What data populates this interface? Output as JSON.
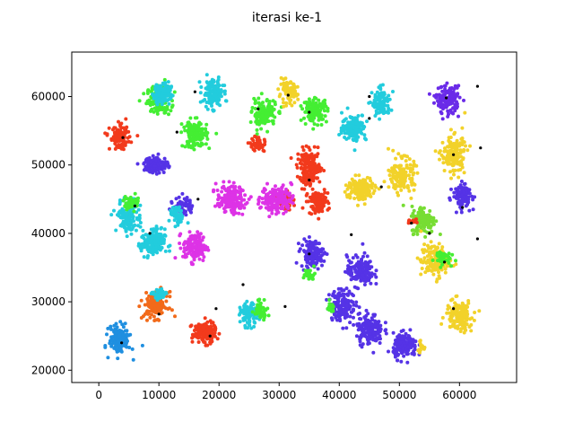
{
  "chart_data": {
    "type": "scatter",
    "title": "iterasi ke-1",
    "xlabel": "",
    "ylabel": "",
    "xlim": [
      -4500,
      69500
    ],
    "ylim": [
      18200,
      66500
    ],
    "xticks": [
      0,
      10000,
      20000,
      30000,
      40000,
      50000,
      60000
    ],
    "xtick_labels": [
      "0",
      "10000",
      "20000",
      "30000",
      "40000",
      "50000",
      "60000"
    ],
    "yticks": [
      20000,
      30000,
      40000,
      50000,
      60000
    ],
    "ytick_labels": [
      "20000",
      "30000",
      "40000",
      "50000",
      "60000"
    ],
    "grid": false,
    "legend": "none",
    "clusters": [
      {
        "center": [
          10000,
          59500
        ],
        "color": "#44ee33",
        "spread": [
          1800,
          1800
        ],
        "count": 150
      },
      {
        "center": [
          10500,
          60500
        ],
        "color": "#22ccdd",
        "spread": [
          1400,
          1500
        ],
        "count": 120
      },
      {
        "center": [
          19000,
          60500
        ],
        "color": "#22ccdd",
        "spread": [
          1500,
          1800
        ],
        "count": 140
      },
      {
        "center": [
          27500,
          57500
        ],
        "color": "#44ee33",
        "spread": [
          1800,
          1800
        ],
        "count": 140
      },
      {
        "center": [
          26500,
          53000
        ],
        "color": "#f23a1c",
        "spread": [
          1300,
          1000
        ],
        "count": 50
      },
      {
        "center": [
          31500,
          60500
        ],
        "color": "#f2d22a",
        "spread": [
          1400,
          1400
        ],
        "count": 90
      },
      {
        "center": [
          36000,
          58000
        ],
        "color": "#44ee33",
        "spread": [
          1800,
          1500
        ],
        "count": 140
      },
      {
        "center": [
          42500,
          55500
        ],
        "color": "#22ccdd",
        "spread": [
          1800,
          1800
        ],
        "count": 140
      },
      {
        "center": [
          47000,
          59000
        ],
        "color": "#22ccdd",
        "spread": [
          1400,
          1800
        ],
        "count": 110
      },
      {
        "center": [
          58000,
          59500
        ],
        "color": "#6a2be8",
        "spread": [
          1800,
          1800
        ],
        "count": 150
      },
      {
        "center": [
          3500,
          54000
        ],
        "color": "#f23a1c",
        "spread": [
          1500,
          1500
        ],
        "count": 110
      },
      {
        "center": [
          16000,
          54500
        ],
        "color": "#44ee33",
        "spread": [
          1800,
          1800
        ],
        "count": 150
      },
      {
        "center": [
          9500,
          50000
        ],
        "color": "#5533e6",
        "spread": [
          1800,
          1100
        ],
        "count": 130
      },
      {
        "center": [
          35000,
          49500
        ],
        "color": "#f23a1c",
        "spread": [
          1800,
          2300
        ],
        "count": 170
      },
      {
        "center": [
          36500,
          44500
        ],
        "color": "#f23a1c",
        "spread": [
          1500,
          1500
        ],
        "count": 110
      },
      {
        "center": [
          31000,
          45000
        ],
        "color": "#f23a1c",
        "spread": [
          1000,
          1400
        ],
        "count": 60
      },
      {
        "center": [
          43500,
          46500
        ],
        "color": "#f2d22a",
        "spread": [
          2200,
          1600
        ],
        "count": 150
      },
      {
        "center": [
          50500,
          48500
        ],
        "color": "#f2d22a",
        "spread": [
          1800,
          2200
        ],
        "count": 150
      },
      {
        "center": [
          59000,
          51500
        ],
        "color": "#f2d22a",
        "spread": [
          1800,
          2600
        ],
        "count": 160
      },
      {
        "center": [
          60500,
          45500
        ],
        "color": "#5533e6",
        "spread": [
          1400,
          1600
        ],
        "count": 110
      },
      {
        "center": [
          22000,
          45000
        ],
        "color": "#dd33e6",
        "spread": [
          2200,
          1800
        ],
        "count": 160
      },
      {
        "center": [
          29500,
          45000
        ],
        "color": "#dd33e6",
        "spread": [
          2300,
          1800
        ],
        "count": 160
      },
      {
        "center": [
          14000,
          44000
        ],
        "color": "#5533e6",
        "spread": [
          1500,
          1300
        ],
        "count": 60
      },
      {
        "center": [
          5000,
          42500
        ],
        "color": "#22ccdd",
        "spread": [
          1800,
          2200
        ],
        "count": 150
      },
      {
        "center": [
          5500,
          44500
        ],
        "color": "#44ee33",
        "spread": [
          1200,
          1000
        ],
        "count": 40
      },
      {
        "center": [
          13000,
          42500
        ],
        "color": "#22ccdd",
        "spread": [
          1100,
          1300
        ],
        "count": 50
      },
      {
        "center": [
          9000,
          38500
        ],
        "color": "#22ccdd",
        "spread": [
          1800,
          1900
        ],
        "count": 150
      },
      {
        "center": [
          16000,
          38000
        ],
        "color": "#dd33e6",
        "spread": [
          1800,
          1900
        ],
        "count": 150
      },
      {
        "center": [
          54000,
          42000
        ],
        "color": "#77dd33",
        "spread": [
          1800,
          1800
        ],
        "count": 140
      },
      {
        "center": [
          52000,
          41800
        ],
        "color": "#f23a1c",
        "spread": [
          600,
          500
        ],
        "count": 15
      },
      {
        "center": [
          35500,
          37000
        ],
        "color": "#5533e6",
        "spread": [
          1700,
          1800
        ],
        "count": 140
      },
      {
        "center": [
          35000,
          34000
        ],
        "color": "#44ee33",
        "spread": [
          900,
          800
        ],
        "count": 25
      },
      {
        "center": [
          56000,
          36000
        ],
        "color": "#f2d22a",
        "spread": [
          2200,
          2200
        ],
        "count": 150
      },
      {
        "center": [
          57000,
          36500
        ],
        "color": "#44ee33",
        "spread": [
          1300,
          900
        ],
        "count": 50
      },
      {
        "center": [
          43500,
          34500
        ],
        "color": "#5533e6",
        "spread": [
          2000,
          2000
        ],
        "count": 160
      },
      {
        "center": [
          40500,
          29500
        ],
        "color": "#5533e6",
        "spread": [
          2000,
          2000
        ],
        "count": 160
      },
      {
        "center": [
          45000,
          26000
        ],
        "color": "#5533e6",
        "spread": [
          2000,
          2000
        ],
        "count": 160
      },
      {
        "center": [
          51000,
          23500
        ],
        "color": "#5533e6",
        "spread": [
          1800,
          1600
        ],
        "count": 140
      },
      {
        "center": [
          38500,
          29000
        ],
        "color": "#44ee33",
        "spread": [
          700,
          700
        ],
        "count": 20
      },
      {
        "center": [
          60000,
          28000
        ],
        "color": "#f2d22a",
        "spread": [
          2000,
          2000
        ],
        "count": 160
      },
      {
        "center": [
          53500,
          23500
        ],
        "color": "#f2d22a",
        "spread": [
          500,
          800
        ],
        "count": 15
      },
      {
        "center": [
          9500,
          29500
        ],
        "color": "#f26a1a",
        "spread": [
          1800,
          1700
        ],
        "count": 150
      },
      {
        "center": [
          10000,
          31000
        ],
        "color": "#22ccdd",
        "spread": [
          1000,
          800
        ],
        "count": 40
      },
      {
        "center": [
          3500,
          24500
        ],
        "color": "#1f8fe0",
        "spread": [
          1600,
          1800
        ],
        "count": 150
      },
      {
        "center": [
          17500,
          25500
        ],
        "color": "#f23a1c",
        "spread": [
          1800,
          1400
        ],
        "count": 150
      },
      {
        "center": [
          25000,
          28000
        ],
        "color": "#22ccdd",
        "spread": [
          1300,
          1500
        ],
        "count": 90
      },
      {
        "center": [
          27000,
          29000
        ],
        "color": "#44ee33",
        "spread": [
          1000,
          1300
        ],
        "count": 50
      }
    ],
    "centroids": [
      [
        16000,
        60700
      ],
      [
        13000,
        54800
      ],
      [
        4000,
        54000
      ],
      [
        31500,
        60200
      ],
      [
        26500,
        58200
      ],
      [
        35000,
        57700
      ],
      [
        45000,
        60000
      ],
      [
        45000,
        56800
      ],
      [
        57800,
        59800
      ],
      [
        63000,
        61500
      ],
      [
        63500,
        52500
      ],
      [
        59000,
        51500
      ],
      [
        47000,
        46800
      ],
      [
        35000,
        47800
      ],
      [
        6000,
        44000
      ],
      [
        8500,
        40000
      ],
      [
        42000,
        39800
      ],
      [
        52000,
        41500
      ],
      [
        55000,
        40000
      ],
      [
        63000,
        39200
      ],
      [
        35000,
        37000
      ],
      [
        57500,
        35800
      ],
      [
        24000,
        32500
      ],
      [
        31000,
        29300
      ],
      [
        10000,
        28200
      ],
      [
        19500,
        29000
      ],
      [
        18500,
        25000
      ],
      [
        3800,
        24000
      ],
      [
        59000,
        29000
      ],
      [
        16500,
        45000
      ],
      [
        60500,
        43800
      ]
    ]
  }
}
